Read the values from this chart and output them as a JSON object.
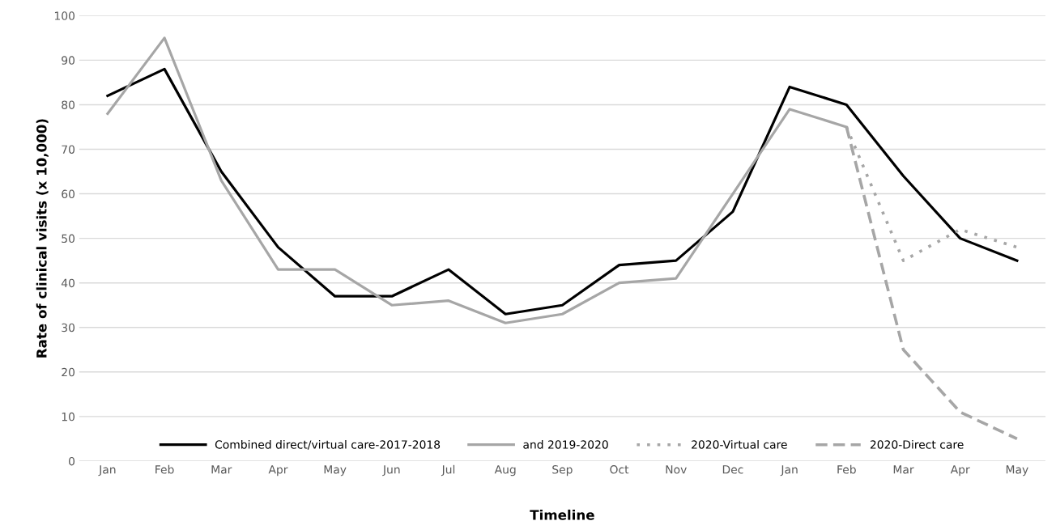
{
  "chart_data": {
    "type": "line",
    "xlabel": "Timeline",
    "ylabel": "Rate of clinical visits (x 10,000)",
    "categories": [
      "Jan",
      "Feb",
      "Mar",
      "Apr",
      "May",
      "Jun",
      "Jul",
      "Aug",
      "Sep",
      "Oct",
      "Nov",
      "Dec",
      "Jan",
      "Feb",
      "Mar",
      "Apr",
      "May"
    ],
    "series": [
      {
        "name": "Combined direct/virtual care-2017-2018",
        "color": "#000000",
        "line_style": "solid",
        "values": [
          82,
          88,
          65,
          48,
          37,
          37,
          43,
          33,
          35,
          44,
          45,
          56,
          84,
          80,
          64,
          50,
          45
        ]
      },
      {
        "name": "and 2019-2020",
        "color": "#a6a6a6",
        "line_style": "solid",
        "values": [
          78,
          95,
          63,
          43,
          43,
          35,
          36,
          31,
          33,
          40,
          41,
          60,
          79,
          75,
          null,
          null,
          null
        ]
      },
      {
        "name": "2020-Virtual care",
        "color": "#a6a6a6",
        "line_style": "dotted",
        "values": [
          null,
          null,
          null,
          null,
          null,
          null,
          null,
          null,
          null,
          null,
          null,
          null,
          null,
          75,
          45,
          52,
          48
        ]
      },
      {
        "name": "2020-Direct care",
        "color": "#a6a6a6",
        "line_style": "dashed",
        "values": [
          null,
          null,
          null,
          null,
          null,
          null,
          null,
          null,
          null,
          null,
          null,
          null,
          null,
          75,
          25,
          11,
          5
        ]
      }
    ],
    "ylim": [
      0,
      100
    ],
    "yticks": [
      0,
      10,
      20,
      30,
      40,
      50,
      60,
      70,
      80,
      90,
      100
    ],
    "grid": "y",
    "legend": "bottom",
    "marker": "none"
  }
}
